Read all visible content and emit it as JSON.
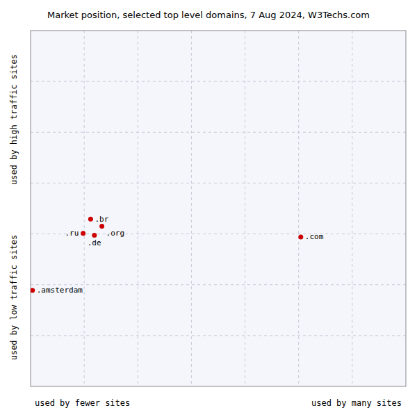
{
  "chart_data": {
    "type": "scatter",
    "title": "Market position, selected top level domains, 7 Aug 2024, W3Techs.com",
    "xlabel_left": "used by fewer sites",
    "xlabel_right": "used by many sites",
    "ylabel_top": "used by high traffic sites",
    "ylabel_bottom": "used by low traffic sites",
    "labels": [
      ".com",
      ".br",
      ".org",
      ".ru",
      ".de",
      ".amsterdam"
    ],
    "x": [
      0.72,
      0.16,
      0.19,
      0.14,
      0.17,
      0.005
    ],
    "values": [
      0.42,
      0.47,
      0.45,
      0.43,
      0.425,
      0.27
    ],
    "color": "#cc0000",
    "marker": "circle",
    "xlim": [
      0,
      1
    ],
    "ylim": [
      0,
      1
    ],
    "xticks": [
      0.14285714285714285,
      0.2857142857142857,
      0.42857142857142855,
      0.5714285714285714,
      0.7142857142857143,
      0.8571428571428571
    ],
    "yticks": [
      0.14285714285714285,
      0.2857142857142857,
      0.42857142857142855,
      0.5714285714285714,
      0.7142857142857143,
      0.8571428571428571
    ],
    "tick_labels": false,
    "grid": true,
    "data_labels": true
  }
}
